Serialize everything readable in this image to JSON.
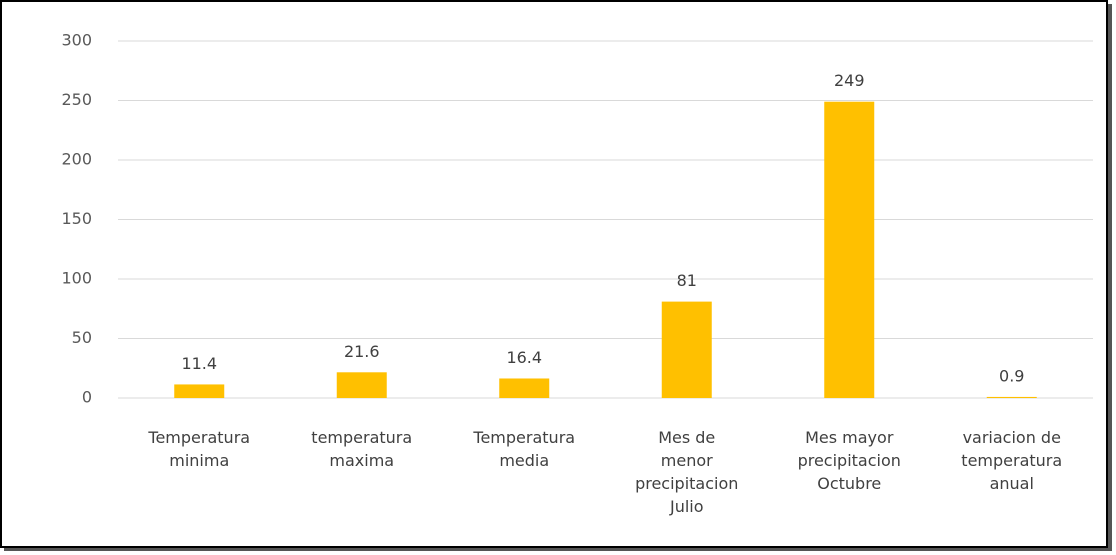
{
  "chart_data": {
    "type": "bar",
    "categories": [
      [
        "Temperatura",
        "minima"
      ],
      [
        "temperatura",
        "maxima"
      ],
      [
        "Temperatura",
        "media"
      ],
      [
        "Mes de",
        "menor",
        "precipitacion",
        "Julio"
      ],
      [
        "Mes mayor",
        "precipitacion",
        "Octubre"
      ],
      [
        "variacion de",
        "temperatura",
        "anual"
      ]
    ],
    "values": [
      11.4,
      21.6,
      16.4,
      81,
      249,
      0.9
    ],
    "color": "#ffc000",
    "ylim": [
      0,
      300
    ],
    "yticks": [
      0,
      50,
      100,
      150,
      200,
      250,
      300
    ],
    "grid": true
  }
}
